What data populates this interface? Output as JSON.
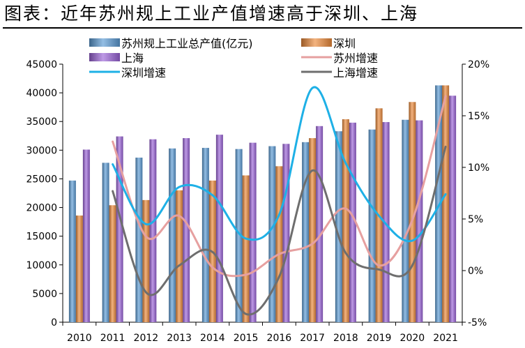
{
  "title": "图表：近年苏州规上工业产值增速高于深圳、上海",
  "chart_data": {
    "type": "bar",
    "categories": [
      "2010",
      "2011",
      "2012",
      "2013",
      "2014",
      "2015",
      "2016",
      "2017",
      "2018",
      "2019",
      "2020",
      "2021"
    ],
    "series": [
      {
        "name": "苏州规上工业总产值(亿元)",
        "kind": "bar",
        "axis": "left",
        "color": "#5b9bd5",
        "values": [
          24700,
          27800,
          28700,
          30300,
          30400,
          30200,
          30700,
          31400,
          33300,
          33600,
          35300,
          41300
        ]
      },
      {
        "name": "深圳",
        "kind": "bar",
        "axis": "left",
        "color": "#ed8a3a",
        "values": [
          18600,
          20400,
          21300,
          23000,
          24700,
          25600,
          27200,
          32100,
          35400,
          37300,
          38400,
          41300
        ]
      },
      {
        "name": "上海",
        "kind": "bar",
        "axis": "left",
        "color": "#9b63d9",
        "values": [
          30100,
          32400,
          31900,
          32100,
          32700,
          31300,
          31100,
          34200,
          34800,
          34900,
          35200,
          39500
        ]
      },
      {
        "name": "苏州增速",
        "kind": "line",
        "axis": "right",
        "color": "#e6a0a0",
        "values": [
          null,
          12.5,
          3.3,
          5.3,
          0.3,
          -0.4,
          1.6,
          2.6,
          6.0,
          0.5,
          4.9,
          16.9
        ]
      },
      {
        "name": "深圳增速",
        "kind": "line",
        "axis": "right",
        "color": "#1eb0e6",
        "values": [
          null,
          10.3,
          4.5,
          8.1,
          7.3,
          3.1,
          5.4,
          17.7,
          10.4,
          5.3,
          2.9,
          7.4
        ]
      },
      {
        "name": "上海增速",
        "kind": "line",
        "axis": "right",
        "color": "#6e6e6e",
        "values": [
          null,
          7.7,
          -2.1,
          0.5,
          1.8,
          -4.2,
          -0.6,
          9.7,
          1.7,
          0.1,
          0.5,
          12.0
        ]
      }
    ],
    "y_left": {
      "min": 0,
      "max": 45000,
      "ticks": [
        "0",
        "5000",
        "10000",
        "15000",
        "20000",
        "25000",
        "30000",
        "35000",
        "40000",
        "45000"
      ]
    },
    "y_right": {
      "min": -5,
      "max": 20,
      "ticks": [
        "-5%",
        "0%",
        "5%",
        "10%",
        "15%",
        "20%"
      ]
    },
    "grid": false,
    "legend_position": "top"
  }
}
